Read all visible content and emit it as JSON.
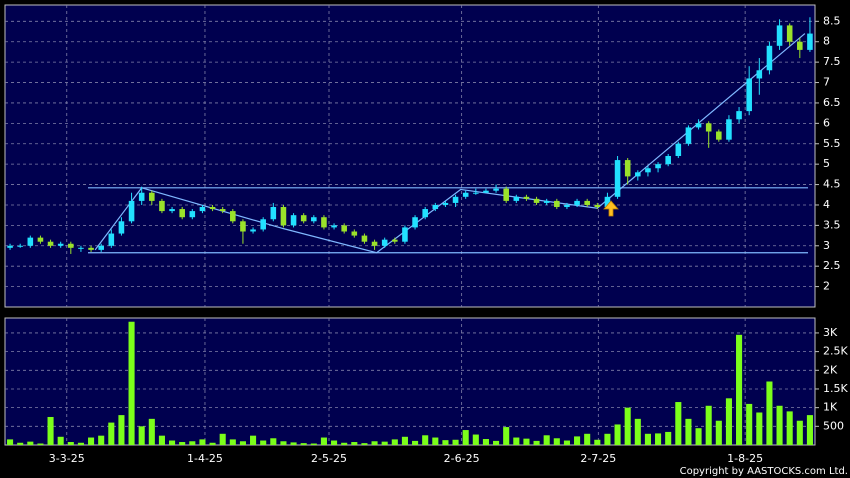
{
  "chart_data": [
    {
      "type": "candlestick",
      "open": [
        2.95,
        3.0,
        3.0,
        3.2,
        3.1,
        3.0,
        3.05,
        2.95,
        2.95,
        2.9,
        3.0,
        3.3,
        3.6,
        4.1,
        4.3,
        4.1,
        3.85,
        3.9,
        3.7,
        3.85,
        3.95,
        3.9,
        3.85,
        3.6,
        3.35,
        3.4,
        3.65,
        3.95,
        3.5,
        3.75,
        3.6,
        3.7,
        3.45,
        3.5,
        3.35,
        3.25,
        3.1,
        3.0,
        3.15,
        3.1,
        3.45,
        3.7,
        3.9,
        4.0,
        4.05,
        4.2,
        4.3,
        4.3,
        4.35,
        4.4,
        4.1,
        4.2,
        4.15,
        4.05,
        4.1,
        3.95,
        4.0,
        4.1,
        4.0,
        3.95,
        4.2,
        5.1,
        4.7,
        4.8,
        4.9,
        5.0,
        5.2,
        5.5,
        5.9,
        6.0,
        5.8,
        5.6,
        6.1,
        6.3,
        7.1,
        7.3,
        7.9,
        8.4,
        8.0,
        7.8
      ],
      "high": [
        3.05,
        3.05,
        3.25,
        3.25,
        3.15,
        3.1,
        3.1,
        3.0,
        3.0,
        3.05,
        3.4,
        3.7,
        4.3,
        4.45,
        4.35,
        4.15,
        3.95,
        3.95,
        3.9,
        4.0,
        4.0,
        3.95,
        3.9,
        3.65,
        3.45,
        3.7,
        4.05,
        4.0,
        3.8,
        3.8,
        3.75,
        3.75,
        3.55,
        3.55,
        3.4,
        3.3,
        3.15,
        3.2,
        3.2,
        3.5,
        3.75,
        3.95,
        4.05,
        4.1,
        4.25,
        4.35,
        4.4,
        4.4,
        4.5,
        4.45,
        4.25,
        4.25,
        4.2,
        4.15,
        4.15,
        4.05,
        4.15,
        4.15,
        4.05,
        4.3,
        5.2,
        5.15,
        4.85,
        4.95,
        5.05,
        5.25,
        5.55,
        5.95,
        6.1,
        6.05,
        5.85,
        6.2,
        6.4,
        7.4,
        7.6,
        8.0,
        8.55,
        8.45,
        8.1,
        8.6
      ],
      "low": [
        2.9,
        2.95,
        2.95,
        3.05,
        2.95,
        2.95,
        2.8,
        2.85,
        2.85,
        2.85,
        2.95,
        3.25,
        3.55,
        4.0,
        4.0,
        3.8,
        3.8,
        3.65,
        3.65,
        3.8,
        3.85,
        3.8,
        3.55,
        3.05,
        3.3,
        3.35,
        3.6,
        3.45,
        3.45,
        3.55,
        3.55,
        3.4,
        3.4,
        3.3,
        3.2,
        3.05,
        2.9,
        2.95,
        3.05,
        3.05,
        3.4,
        3.65,
        3.85,
        3.95,
        3.95,
        4.15,
        4.25,
        4.3,
        4.3,
        4.05,
        4.05,
        4.1,
        4.0,
        4.0,
        3.9,
        3.9,
        3.95,
        3.95,
        3.9,
        3.9,
        4.15,
        4.5,
        4.6,
        4.7,
        4.8,
        4.95,
        5.15,
        5.45,
        5.85,
        5.4,
        5.55,
        5.55,
        6.0,
        6.2,
        6.7,
        7.2,
        7.8,
        7.9,
        7.6,
        7.75
      ],
      "close": [
        3.0,
        3.0,
        3.2,
        3.1,
        3.0,
        3.05,
        2.95,
        2.95,
        2.9,
        3.0,
        3.3,
        3.6,
        4.1,
        4.3,
        4.1,
        3.85,
        3.9,
        3.7,
        3.85,
        3.95,
        3.9,
        3.85,
        3.6,
        3.35,
        3.4,
        3.65,
        3.95,
        3.5,
        3.75,
        3.6,
        3.7,
        3.45,
        3.5,
        3.35,
        3.25,
        3.1,
        3.0,
        3.15,
        3.1,
        3.45,
        3.7,
        3.9,
        4.0,
        4.05,
        4.2,
        4.3,
        4.3,
        4.35,
        4.4,
        4.1,
        4.2,
        4.15,
        4.05,
        4.1,
        3.95,
        4.0,
        4.1,
        4.0,
        3.95,
        4.2,
        5.1,
        4.7,
        4.8,
        4.9,
        5.0,
        5.2,
        5.5,
        5.9,
        6.0,
        5.8,
        5.6,
        6.1,
        6.3,
        7.1,
        7.3,
        7.9,
        8.4,
        8.0,
        7.8,
        8.2
      ],
      "up_color": "#22e0ff",
      "down_color": "#9be22a",
      "xlim": [
        -0.5,
        79.5
      ],
      "xticks": [
        {
          "value": 5.6,
          "label": "3-3-25"
        },
        {
          "value": 19.25,
          "label": "1-4-25"
        },
        {
          "value": 31.5,
          "label": "2-5-25"
        },
        {
          "value": 44.6,
          "label": "2-6-25"
        },
        {
          "value": 58.1,
          "label": "2-7-25"
        },
        {
          "value": 72.6,
          "label": "1-8-25"
        }
      ],
      "ylim": [
        1.5,
        8.9
      ],
      "yticks": [
        2,
        2.5,
        3,
        3.5,
        4,
        4.5,
        5,
        5.5,
        6,
        6.5,
        7,
        7.5,
        8,
        8.5
      ],
      "grid": true,
      "levels": [
        4.42,
        2.83
      ],
      "trend_line": {
        "x": [
          8.4,
          13,
          27,
          36.2,
          44.5,
          58,
          78.5
        ],
        "y": [
          2.9,
          4.42,
          3.42,
          2.83,
          4.38,
          3.92,
          8.2
        ]
      },
      "line_color": "#7fb8ff"
    },
    {
      "type": "bar",
      "values": [
        150,
        60,
        90,
        40,
        750,
        220,
        80,
        60,
        200,
        250,
        600,
        800,
        3300,
        500,
        700,
        250,
        120,
        80,
        100,
        150,
        60,
        300,
        150,
        100,
        250,
        120,
        180,
        100,
        70,
        50,
        40,
        200,
        120,
        60,
        80,
        50,
        100,
        90,
        150,
        220,
        110,
        260,
        200,
        130,
        140,
        400,
        280,
        160,
        110,
        480,
        200,
        170,
        110,
        260,
        180,
        120,
        230,
        300,
        140,
        300,
        550,
        1000,
        700,
        300,
        310,
        350,
        1150,
        700,
        450,
        1050,
        650,
        1250,
        2950,
        1100,
        870,
        1700,
        1050,
        900,
        650,
        800
      ],
      "color": "#7cff1a",
      "ylim": [
        0,
        3400
      ],
      "yticks": [
        500,
        {
          "value": 1000,
          "label": "1K"
        },
        {
          "value": 1500,
          "label": "1.5K"
        },
        {
          "value": 2000,
          "label": "2K"
        },
        {
          "value": 2500,
          "label": "2.5K"
        },
        {
          "value": 3000,
          "label": "3K"
        }
      ],
      "grid": true
    }
  ],
  "copyright": "Copyright by AASTOCKS.com Ltd."
}
